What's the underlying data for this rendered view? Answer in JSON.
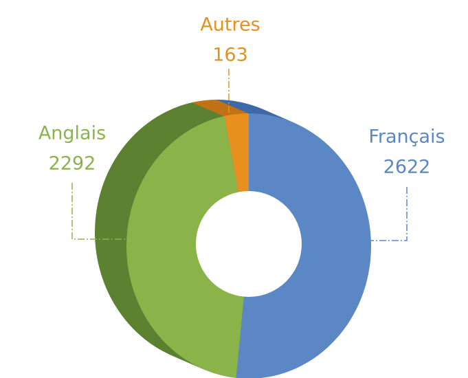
{
  "chart_data": {
    "type": "pie",
    "donut": true,
    "categories": [
      "Français",
      "Anglais",
      "Autres"
    ],
    "values": [
      2622,
      2292,
      163
    ],
    "colors": [
      "#5b87c5",
      "#8ab34a",
      "#e8901f"
    ],
    "shadow_colors": [
      "#3f6aa8",
      "#5c8131",
      "#c07214"
    ]
  }
}
